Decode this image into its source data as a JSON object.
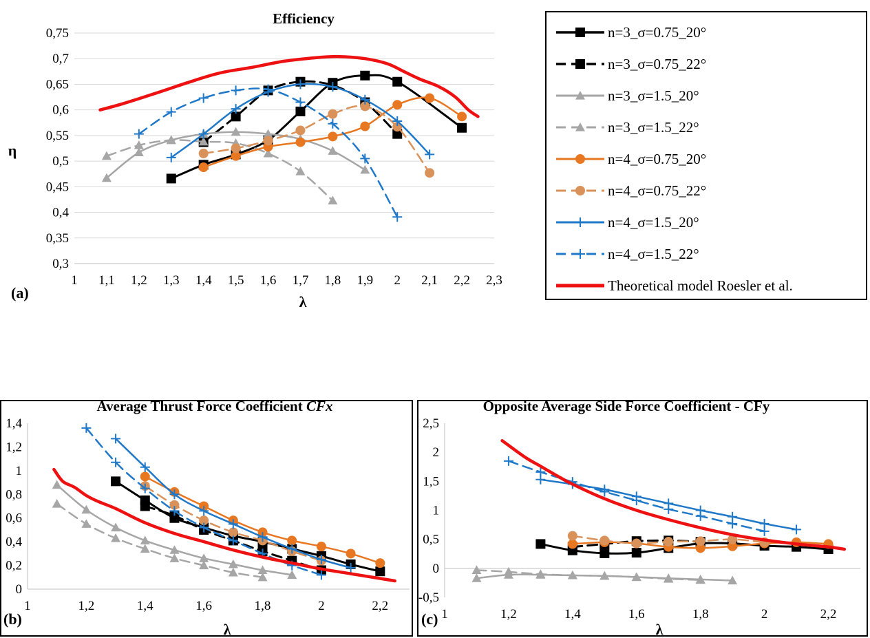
{
  "colors": {
    "s1": "#000000",
    "s2": "#000000",
    "s3": "#a6a6a6",
    "s4": "#a6a6a6",
    "s5": "#e87722",
    "s6": "#d9925a",
    "s7": "#1f78c8",
    "s8": "#1f78c8",
    "theory": "#ee1111"
  },
  "legend": {
    "entries": [
      {
        "label": "n=3_σ=0.75_20°",
        "key": "s1"
      },
      {
        "label": "n=3_σ=0.75_22°",
        "key": "s2"
      },
      {
        "label": "n=3_σ=1.5_20°",
        "key": "s3"
      },
      {
        "label": "n=3_σ=1.5_22°",
        "key": "s4"
      },
      {
        "label": "n=4_σ=0.75_20°",
        "key": "s5"
      },
      {
        "label": "n=4_σ=0.75_22°",
        "key": "s6"
      },
      {
        "label": "n=4_σ=1.5_20°",
        "key": "s7"
      },
      {
        "label": "n=4_σ=1.5_22°",
        "key": "s8"
      },
      {
        "label": "Theoretical model Roesler et al.",
        "key": "theory"
      }
    ]
  },
  "chart_data": [
    {
      "type": "line",
      "panel": "(a)",
      "title": "Efficiency",
      "xlabel": "λ",
      "ylabel": "η",
      "xlim": [
        1,
        2.3
      ],
      "ylim": [
        0.3,
        0.75
      ],
      "xticks": [
        1,
        1.1,
        1.2,
        1.3,
        1.4,
        1.5,
        1.6,
        1.7,
        1.8,
        1.9,
        2,
        2.1,
        2.2,
        2.3
      ],
      "yticks": [
        0.3,
        0.35,
        0.4,
        0.45,
        0.5,
        0.55,
        0.6,
        0.65,
        0.7,
        0.75
      ],
      "grid": "horizontal",
      "series": [
        {
          "name": "n=3_σ=0.75_20°",
          "key": "s1",
          "x": [
            1.3,
            1.4,
            1.5,
            1.6,
            1.7,
            1.8,
            1.9,
            2.0,
            2.2
          ],
          "y": [
            0.466,
            0.493,
            0.513,
            0.541,
            0.597,
            0.653,
            0.667,
            0.655,
            0.565
          ]
        },
        {
          "name": "n=3_σ=0.75_22°",
          "key": "s2",
          "x": [
            1.4,
            1.5,
            1.6,
            1.7,
            1.8,
            1.9,
            2.0
          ],
          "y": [
            0.537,
            0.587,
            0.638,
            0.655,
            0.648,
            0.615,
            0.553
          ]
        },
        {
          "name": "n=3_σ=1.5_20°",
          "key": "s3",
          "x": [
            1.1,
            1.2,
            1.3,
            1.4,
            1.5,
            1.6,
            1.7,
            1.8,
            1.9
          ],
          "y": [
            0.467,
            0.517,
            0.541,
            0.553,
            0.557,
            0.553,
            0.543,
            0.52,
            0.483
          ]
        },
        {
          "name": "n=3_σ=1.5_22°",
          "key": "s4",
          "x": [
            1.1,
            1.2,
            1.3,
            1.4,
            1.5,
            1.6,
            1.7,
            1.8
          ],
          "y": [
            0.51,
            0.531,
            0.541,
            0.538,
            0.535,
            0.515,
            0.48,
            0.423
          ]
        },
        {
          "name": "n=4_σ=0.75_20°",
          "key": "s5",
          "x": [
            1.4,
            1.5,
            1.6,
            1.7,
            1.8,
            1.9,
            2.0,
            2.1,
            2.2
          ],
          "y": [
            0.488,
            0.51,
            0.528,
            0.537,
            0.548,
            0.568,
            0.61,
            0.623,
            0.587
          ]
        },
        {
          "name": "n=4_σ=0.75_22°",
          "key": "s6",
          "x": [
            1.4,
            1.5,
            1.6,
            1.7,
            1.8,
            1.9,
            2.0,
            2.1
          ],
          "y": [
            0.515,
            0.525,
            0.54,
            0.56,
            0.592,
            0.607,
            0.567,
            0.477
          ]
        },
        {
          "name": "n=4_σ=1.5_20°",
          "key": "s7",
          "x": [
            1.3,
            1.4,
            1.5,
            1.6,
            1.7,
            1.8,
            1.9,
            2.0,
            2.1
          ],
          "y": [
            0.507,
            0.553,
            0.602,
            0.635,
            0.65,
            0.645,
            0.62,
            0.578,
            0.513
          ]
        },
        {
          "name": "n=4_σ=1.5_22°",
          "key": "s8",
          "x": [
            1.2,
            1.3,
            1.4,
            1.5,
            1.6,
            1.7,
            1.8,
            1.9,
            2.0
          ],
          "y": [
            0.553,
            0.596,
            0.623,
            0.638,
            0.64,
            0.615,
            0.573,
            0.505,
            0.391
          ]
        },
        {
          "name": "Theoretical model Roesler et al.",
          "key": "theory",
          "x": [
            1.08,
            1.15,
            1.25,
            1.35,
            1.45,
            1.55,
            1.65,
            1.75,
            1.82,
            1.9,
            1.97,
            2.02,
            2.07,
            2.13,
            2.18,
            2.22,
            2.25
          ],
          "y": [
            0.6,
            0.612,
            0.632,
            0.653,
            0.672,
            0.683,
            0.695,
            0.702,
            0.704,
            0.7,
            0.69,
            0.675,
            0.66,
            0.645,
            0.625,
            0.6,
            0.587
          ]
        }
      ]
    },
    {
      "type": "line",
      "panel": "(b)",
      "title": "Average Thrust Force Coefficient ",
      "title_symbol": "CFx",
      "xlabel": "λ",
      "ylabel": "",
      "xlim": [
        1,
        2.3
      ],
      "ylim": [
        0,
        1.4
      ],
      "xticks": [
        1,
        1.2,
        1.4,
        1.6,
        1.8,
        2,
        2.2
      ],
      "yticks": [
        0,
        0.2,
        0.4,
        0.6,
        0.8,
        1,
        1.2,
        1.4
      ],
      "grid": "none",
      "series": [
        {
          "name": "n=3_σ=0.75_20°",
          "key": "s1",
          "x": [
            1.3,
            1.4,
            1.5,
            1.6,
            1.7,
            1.8,
            1.9,
            2.0,
            2.1,
            2.2
          ],
          "y": [
            0.91,
            0.75,
            0.6,
            0.52,
            0.45,
            0.4,
            0.34,
            0.28,
            0.21,
            0.15
          ]
        },
        {
          "name": "n=3_σ=0.75_22°",
          "key": "s2",
          "x": [
            1.4,
            1.5,
            1.6,
            1.7,
            1.8,
            1.9,
            2.0
          ],
          "y": [
            0.7,
            0.62,
            0.5,
            0.41,
            0.32,
            0.24,
            0.16
          ]
        },
        {
          "name": "n=3_σ=1.5_20°",
          "key": "s3",
          "x": [
            1.1,
            1.2,
            1.3,
            1.4,
            1.5,
            1.6,
            1.7,
            1.8,
            1.9
          ],
          "y": [
            0.88,
            0.67,
            0.52,
            0.41,
            0.33,
            0.26,
            0.21,
            0.16,
            0.12
          ]
        },
        {
          "name": "n=3_σ=1.5_22°",
          "key": "s4",
          "x": [
            1.1,
            1.2,
            1.3,
            1.4,
            1.5,
            1.6,
            1.7,
            1.8
          ],
          "y": [
            0.72,
            0.55,
            0.43,
            0.34,
            0.26,
            0.2,
            0.14,
            0.1
          ]
        },
        {
          "name": "n=4_σ=0.75_20°",
          "key": "s5",
          "x": [
            1.4,
            1.5,
            1.6,
            1.7,
            1.8,
            1.9,
            2.0,
            2.1,
            2.2
          ],
          "y": [
            0.95,
            0.82,
            0.7,
            0.58,
            0.48,
            0.41,
            0.36,
            0.3,
            0.22
          ]
        },
        {
          "name": "n=4_σ=0.75_22°",
          "key": "s6",
          "x": [
            1.4,
            1.5,
            1.6,
            1.7,
            1.8,
            1.9,
            2.0
          ],
          "y": [
            0.87,
            0.71,
            0.58,
            0.48,
            0.41,
            0.32,
            0.24
          ]
        },
        {
          "name": "n=4_σ=1.5_20°",
          "key": "s7",
          "x": [
            1.3,
            1.4,
            1.5,
            1.6,
            1.7,
            1.8,
            1.9,
            2.0,
            2.1
          ],
          "y": [
            1.27,
            1.03,
            0.8,
            0.66,
            0.55,
            0.44,
            0.34,
            0.25,
            0.18
          ]
        },
        {
          "name": "n=4_σ=1.5_22°",
          "key": "s8",
          "x": [
            1.2,
            1.3,
            1.4,
            1.5,
            1.6,
            1.7,
            1.8,
            1.9,
            2.0
          ],
          "y": [
            1.36,
            1.07,
            0.85,
            0.66,
            0.52,
            0.41,
            0.3,
            0.2,
            0.12
          ]
        },
        {
          "name": "Theoretical model Roesler et al.",
          "key": "theory",
          "x": [
            1.09,
            1.12,
            1.16,
            1.2,
            1.24,
            1.3,
            1.4,
            1.5,
            1.6,
            1.7,
            1.8,
            1.9,
            2.0,
            2.1,
            2.2,
            2.25
          ],
          "y": [
            1.01,
            0.91,
            0.86,
            0.79,
            0.74,
            0.68,
            0.56,
            0.47,
            0.4,
            0.33,
            0.27,
            0.22,
            0.17,
            0.13,
            0.09,
            0.07
          ]
        }
      ]
    },
    {
      "type": "line",
      "panel": "(c)",
      "title": "Opposite Average Side Force Coefficient  - CFy",
      "xlabel": "λ",
      "ylabel": "",
      "xlim": [
        1,
        2.3
      ],
      "ylim": [
        -0.5,
        2.5
      ],
      "xticks": [
        1,
        1.2,
        1.4,
        1.6,
        1.8,
        2,
        2.2
      ],
      "yticks": [
        -0.5,
        0,
        0.5,
        1,
        1.5,
        2,
        2.5
      ],
      "grid": "none",
      "series": [
        {
          "name": "n=3_σ=0.75_20°",
          "key": "s1",
          "x": [
            1.3,
            1.4,
            1.5,
            1.6,
            1.7,
            1.8,
            1.9,
            2.0,
            2.1,
            2.2
          ],
          "y": [
            0.42,
            0.31,
            0.26,
            0.27,
            0.35,
            0.43,
            0.43,
            0.39,
            0.37,
            0.33
          ]
        },
        {
          "name": "n=3_σ=0.75_22°",
          "key": "s2",
          "x": [
            1.4,
            1.5,
            1.6,
            1.7,
            1.8
          ],
          "y": [
            0.37,
            0.42,
            0.47,
            0.48,
            0.46
          ]
        },
        {
          "name": "n=3_σ=1.5_20°",
          "key": "s3",
          "x": [
            1.1,
            1.2,
            1.3,
            1.4,
            1.5,
            1.6,
            1.7,
            1.8,
            1.9
          ],
          "y": [
            -0.17,
            -0.11,
            -0.11,
            -0.12,
            -0.13,
            -0.15,
            -0.17,
            -0.19,
            -0.21
          ]
        },
        {
          "name": "n=3_σ=1.5_22°",
          "key": "s4",
          "x": [
            1.1,
            1.2,
            1.3,
            1.4,
            1.5,
            1.6,
            1.7,
            1.8
          ],
          "y": [
            -0.03,
            -0.06,
            -0.1,
            -0.12,
            -0.13,
            -0.15,
            -0.18,
            -0.2
          ]
        },
        {
          "name": "n=4_σ=0.75_20°",
          "key": "s5",
          "x": [
            1.4,
            1.5,
            1.6,
            1.7,
            1.8,
            1.9,
            2.0,
            2.1,
            2.2
          ],
          "y": [
            0.42,
            0.45,
            0.43,
            0.37,
            0.35,
            0.38,
            0.43,
            0.45,
            0.42
          ]
        },
        {
          "name": "n=4_σ=0.75_22°",
          "key": "s6",
          "x": [
            1.4,
            1.5,
            1.6,
            1.7,
            1.8,
            1.9,
            2.0
          ],
          "y": [
            0.56,
            0.48,
            0.43,
            0.46,
            0.47,
            0.5,
            0.45
          ]
        },
        {
          "name": "n=4_σ=1.5_20°",
          "key": "s7",
          "x": [
            1.3,
            1.4,
            1.5,
            1.6,
            1.7,
            1.8,
            1.9,
            2.0,
            2.1
          ],
          "y": [
            1.53,
            1.45,
            1.36,
            1.24,
            1.12,
            1.0,
            0.89,
            0.77,
            0.67
          ]
        },
        {
          "name": "n=4_σ=1.5_22°",
          "key": "s8",
          "x": [
            1.2,
            1.3,
            1.4,
            1.5,
            1.6,
            1.7,
            1.8,
            1.9,
            2.0
          ],
          "y": [
            1.85,
            1.66,
            1.49,
            1.32,
            1.17,
            1.02,
            0.9,
            0.77,
            0.64
          ]
        },
        {
          "name": "Theoretical model Roesler et al.",
          "key": "theory",
          "x": [
            1.18,
            1.25,
            1.3,
            1.35,
            1.4,
            1.5,
            1.6,
            1.7,
            1.8,
            1.9,
            2.0,
            2.1,
            2.2,
            2.25
          ],
          "y": [
            2.2,
            1.92,
            1.76,
            1.6,
            1.45,
            1.2,
            1.0,
            0.84,
            0.7,
            0.58,
            0.49,
            0.42,
            0.37,
            0.33
          ]
        }
      ]
    }
  ]
}
